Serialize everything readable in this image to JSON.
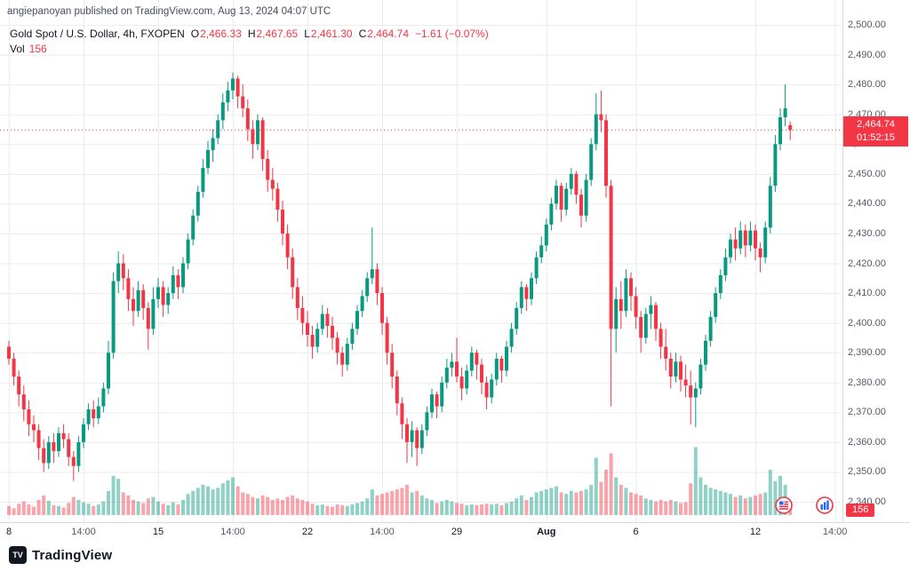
{
  "header": {
    "attribution": "angiepanoyan published on TradingView.com, Aug 13, 2024 04:07 UTC"
  },
  "legend": {
    "symbol_title": "Gold Spot / U.S. Dollar, 4h, FXOPEN",
    "o_label": "O",
    "o_value": "2,466.33",
    "h_label": "H",
    "h_value": "2,467.65",
    "l_label": "L",
    "l_value": "2,461.30",
    "c_label": "C",
    "c_value": "2,464.74",
    "change": "−1.61 (−0.07%)",
    "vol_label": "Vol",
    "vol_value": "156"
  },
  "price_axis": {
    "labels": [
      {
        "text": "2,500.00",
        "value": 2500
      },
      {
        "text": "2,490.00",
        "value": 2490
      },
      {
        "text": "2,480.00",
        "value": 2480
      },
      {
        "text": "2,470.00",
        "value": 2470
      },
      {
        "text": "2,460.00",
        "value": 2460
      },
      {
        "text": "2,450.00",
        "value": 2450
      },
      {
        "text": "2,440.00",
        "value": 2440
      },
      {
        "text": "2,430.00",
        "value": 2430
      },
      {
        "text": "2,420.00",
        "value": 2420
      },
      {
        "text": "2,410.00",
        "value": 2410
      },
      {
        "text": "2,400.00",
        "value": 2400
      },
      {
        "text": "2,390.00",
        "value": 2390
      },
      {
        "text": "2,380.00",
        "value": 2380
      },
      {
        "text": "2,370.00",
        "value": 2370
      },
      {
        "text": "2,360.00",
        "value": 2360
      },
      {
        "text": "2,350.00",
        "value": 2350
      },
      {
        "text": "2,340.00",
        "value": 2340
      }
    ],
    "current_price": "2,464.74",
    "countdown": "01:52:15",
    "volume_badge": "156"
  },
  "time_axis": {
    "labels": [
      {
        "text": "8",
        "index": 0,
        "type": "day"
      },
      {
        "text": "14:00",
        "index": 15,
        "type": "time"
      },
      {
        "text": "15",
        "index": 30,
        "type": "day"
      },
      {
        "text": "14:00",
        "index": 45,
        "type": "time"
      },
      {
        "text": "22",
        "index": 60,
        "type": "day"
      },
      {
        "text": "14:00",
        "index": 75,
        "type": "time"
      },
      {
        "text": "29",
        "index": 90,
        "type": "day"
      },
      {
        "text": "Aug",
        "index": 108,
        "type": "month"
      },
      {
        "text": "6",
        "index": 126,
        "type": "day"
      },
      {
        "text": "12",
        "index": 150,
        "type": "day"
      },
      {
        "text": "14:00",
        "index": 166,
        "type": "time"
      }
    ]
  },
  "branding": {
    "logo_mark": "TV",
    "logo_text": "TradingView"
  },
  "colors": {
    "up": "#089981",
    "down": "#f23645",
    "vol_up": "rgba(8,153,129,0.45)",
    "vol_down": "rgba(242,54,69,0.45)",
    "grid": "#e9ebf0",
    "axis_border": "#d6d9e0",
    "badge": "#f23645",
    "event_blue": "#2962ff"
  },
  "chart_data": {
    "type": "candlestick+volume",
    "title": "Gold Spot / U.S. Dollar",
    "interval": "4h",
    "exchange": "FXOPEN",
    "price_range": [
      2340,
      2500
    ],
    "current": {
      "open": 2466.33,
      "high": 2467.65,
      "low": 2461.3,
      "close": 2464.74,
      "change": -1.61,
      "change_pct": -0.07,
      "volume": 156
    },
    "candles": [
      [
        2392,
        2394,
        2386,
        2388
      ],
      [
        2388,
        2390,
        2379,
        2382
      ],
      [
        2382,
        2384,
        2372,
        2376
      ],
      [
        2376,
        2379,
        2367,
        2371
      ],
      [
        2371,
        2374,
        2362,
        2366
      ],
      [
        2366,
        2369,
        2360,
        2364
      ],
      [
        2364,
        2366,
        2354,
        2358
      ],
      [
        2358,
        2361,
        2350,
        2353
      ],
      [
        2353,
        2362,
        2351,
        2360
      ],
      [
        2360,
        2363,
        2353,
        2357
      ],
      [
        2357,
        2365,
        2355,
        2363
      ],
      [
        2363,
        2366,
        2358,
        2361
      ],
      [
        2361,
        2363,
        2352,
        2355
      ],
      [
        2355,
        2357,
        2347,
        2352
      ],
      [
        2352,
        2362,
        2350,
        2360
      ],
      [
        2360,
        2368,
        2358,
        2366
      ],
      [
        2366,
        2373,
        2364,
        2371
      ],
      [
        2371,
        2374,
        2365,
        2368
      ],
      [
        2368,
        2375,
        2366,
        2372
      ],
      [
        2372,
        2380,
        2370,
        2378
      ],
      [
        2378,
        2394,
        2376,
        2390
      ],
      [
        2390,
        2417,
        2388,
        2414
      ],
      [
        2414,
        2424,
        2410,
        2420
      ],
      [
        2420,
        2423,
        2411,
        2415
      ],
      [
        2415,
        2418,
        2404,
        2408
      ],
      [
        2408,
        2412,
        2399,
        2404
      ],
      [
        2404,
        2414,
        2402,
        2411
      ],
      [
        2411,
        2413,
        2401,
        2405
      ],
      [
        2405,
        2407,
        2391,
        2398
      ],
      [
        2398,
        2412,
        2396,
        2408
      ],
      [
        2408,
        2415,
        2405,
        2412
      ],
      [
        2412,
        2414,
        2402,
        2406
      ],
      [
        2406,
        2412,
        2403,
        2410
      ],
      [
        2410,
        2419,
        2408,
        2416
      ],
      [
        2416,
        2418,
        2408,
        2412
      ],
      [
        2412,
        2422,
        2410,
        2420
      ],
      [
        2420,
        2430,
        2418,
        2428
      ],
      [
        2428,
        2438,
        2426,
        2436
      ],
      [
        2436,
        2446,
        2434,
        2444
      ],
      [
        2444,
        2455,
        2442,
        2452
      ],
      [
        2452,
        2461,
        2450,
        2458
      ],
      [
        2458,
        2465,
        2454,
        2462
      ],
      [
        2462,
        2470,
        2460,
        2468
      ],
      [
        2468,
        2477,
        2465,
        2474
      ],
      [
        2474,
        2481,
        2471,
        2478
      ],
      [
        2478,
        2484,
        2475,
        2482
      ],
      [
        2482,
        2483,
        2472,
        2476
      ],
      [
        2476,
        2480,
        2469,
        2472
      ],
      [
        2472,
        2475,
        2461,
        2465
      ],
      [
        2465,
        2468,
        2455,
        2460
      ],
      [
        2460,
        2470,
        2458,
        2468
      ],
      [
        2468,
        2469,
        2451,
        2455
      ],
      [
        2455,
        2458,
        2444,
        2448
      ],
      [
        2448,
        2452,
        2441,
        2445
      ],
      [
        2445,
        2447,
        2434,
        2438
      ],
      [
        2438,
        2441,
        2426,
        2430
      ],
      [
        2430,
        2433,
        2418,
        2422
      ],
      [
        2422,
        2425,
        2408,
        2412
      ],
      [
        2412,
        2415,
        2401,
        2405
      ],
      [
        2405,
        2409,
        2396,
        2400
      ],
      [
        2400,
        2404,
        2392,
        2396
      ],
      [
        2396,
        2399,
        2388,
        2392
      ],
      [
        2392,
        2400,
        2390,
        2398
      ],
      [
        2398,
        2406,
        2396,
        2403
      ],
      [
        2403,
        2405,
        2395,
        2399
      ],
      [
        2399,
        2402,
        2391,
        2395
      ],
      [
        2395,
        2397,
        2386,
        2390
      ],
      [
        2390,
        2392,
        2382,
        2386
      ],
      [
        2386,
        2395,
        2384,
        2393
      ],
      [
        2393,
        2400,
        2391,
        2398
      ],
      [
        2398,
        2406,
        2396,
        2404
      ],
      [
        2404,
        2411,
        2402,
        2409
      ],
      [
        2409,
        2417,
        2407,
        2415
      ],
      [
        2415,
        2432,
        2413,
        2418
      ],
      [
        2418,
        2420,
        2406,
        2410
      ],
      [
        2410,
        2412,
        2396,
        2400
      ],
      [
        2400,
        2402,
        2386,
        2390
      ],
      [
        2390,
        2393,
        2378,
        2382
      ],
      [
        2382,
        2384,
        2369,
        2373
      ],
      [
        2373,
        2375,
        2361,
        2366
      ],
      [
        2366,
        2368,
        2353,
        2360
      ],
      [
        2360,
        2367,
        2355,
        2364
      ],
      [
        2364,
        2365,
        2352,
        2358
      ],
      [
        2358,
        2366,
        2356,
        2364
      ],
      [
        2364,
        2372,
        2362,
        2370
      ],
      [
        2370,
        2378,
        2368,
        2376
      ],
      [
        2376,
        2377,
        2368,
        2372
      ],
      [
        2372,
        2382,
        2370,
        2380
      ],
      [
        2380,
        2388,
        2378,
        2385
      ],
      [
        2385,
        2390,
        2382,
        2387
      ],
      [
        2387,
        2395,
        2380,
        2382
      ],
      [
        2382,
        2385,
        2374,
        2378
      ],
      [
        2378,
        2386,
        2376,
        2384
      ],
      [
        2384,
        2392,
        2382,
        2390
      ],
      [
        2390,
        2391,
        2381,
        2386
      ],
      [
        2386,
        2388,
        2376,
        2380
      ],
      [
        2380,
        2382,
        2371,
        2375
      ],
      [
        2375,
        2383,
        2373,
        2381
      ],
      [
        2381,
        2390,
        2379,
        2388
      ],
      [
        2388,
        2389,
        2380,
        2384
      ],
      [
        2384,
        2394,
        2382,
        2392
      ],
      [
        2392,
        2400,
        2390,
        2398
      ],
      [
        2398,
        2407,
        2396,
        2405
      ],
      [
        2405,
        2414,
        2403,
        2412
      ],
      [
        2412,
        2413,
        2404,
        2408
      ],
      [
        2408,
        2417,
        2406,
        2415
      ],
      [
        2415,
        2424,
        2413,
        2422
      ],
      [
        2422,
        2429,
        2420,
        2426
      ],
      [
        2426,
        2435,
        2424,
        2433
      ],
      [
        2433,
        2442,
        2431,
        2440
      ],
      [
        2440,
        2448,
        2438,
        2446
      ],
      [
        2446,
        2447,
        2434,
        2438
      ],
      [
        2438,
        2447,
        2436,
        2445
      ],
      [
        2445,
        2452,
        2443,
        2450
      ],
      [
        2450,
        2451,
        2440,
        2443
      ],
      [
        2443,
        2445,
        2432,
        2436
      ],
      [
        2436,
        2450,
        2434,
        2448
      ],
      [
        2448,
        2462,
        2446,
        2460
      ],
      [
        2460,
        2477,
        2458,
        2470
      ],
      [
        2470,
        2478,
        2464,
        2468
      ],
      [
        2468,
        2470,
        2442,
        2446
      ],
      [
        2446,
        2448,
        2372,
        2398
      ],
      [
        2398,
        2412,
        2390,
        2408
      ],
      [
        2408,
        2414,
        2398,
        2404
      ],
      [
        2404,
        2418,
        2402,
        2415
      ],
      [
        2415,
        2417,
        2404,
        2409
      ],
      [
        2409,
        2412,
        2398,
        2402
      ],
      [
        2402,
        2404,
        2390,
        2395
      ],
      [
        2395,
        2405,
        2393,
        2403
      ],
      [
        2403,
        2409,
        2398,
        2406
      ],
      [
        2406,
        2407,
        2394,
        2398
      ],
      [
        2398,
        2400,
        2388,
        2392
      ],
      [
        2392,
        2398,
        2384,
        2388
      ],
      [
        2388,
        2390,
        2378,
        2382
      ],
      [
        2382,
        2390,
        2380,
        2387
      ],
      [
        2387,
        2389,
        2377,
        2381
      ],
      [
        2381,
        2386,
        2375,
        2379
      ],
      [
        2379,
        2384,
        2366,
        2375
      ],
      [
        2375,
        2380,
        2365,
        2378
      ],
      [
        2378,
        2388,
        2376,
        2386
      ],
      [
        2386,
        2396,
        2384,
        2394
      ],
      [
        2394,
        2404,
        2392,
        2402
      ],
      [
        2402,
        2412,
        2400,
        2410
      ],
      [
        2410,
        2418,
        2408,
        2416
      ],
      [
        2416,
        2425,
        2414,
        2422
      ],
      [
        2422,
        2430,
        2420,
        2428
      ],
      [
        2428,
        2432,
        2421,
        2425
      ],
      [
        2425,
        2434,
        2423,
        2431
      ],
      [
        2431,
        2433,
        2422,
        2426
      ],
      [
        2426,
        2434,
        2424,
        2431
      ],
      [
        2431,
        2433,
        2421,
        2425
      ],
      [
        2425,
        2427,
        2417,
        2422
      ],
      [
        2422,
        2434,
        2420,
        2432
      ],
      [
        2432,
        2449,
        2430,
        2446
      ],
      [
        2446,
        2463,
        2444,
        2460
      ],
      [
        2460,
        2472,
        2458,
        2469
      ],
      [
        2469,
        2480,
        2466,
        2472
      ],
      [
        2466.33,
        2467.65,
        2461.3,
        2464.74
      ]
    ],
    "volumes": [
      120,
      90,
      150,
      180,
      140,
      110,
      200,
      260,
      190,
      130,
      120,
      100,
      160,
      240,
      200,
      170,
      150,
      120,
      140,
      180,
      320,
      520,
      480,
      300,
      260,
      200,
      180,
      160,
      220,
      240,
      180,
      150,
      130,
      170,
      140,
      200,
      280,
      320,
      360,
      400,
      380,
      340,
      360,
      420,
      460,
      500,
      380,
      300,
      280,
      240,
      220,
      260,
      240,
      200,
      220,
      200,
      240,
      260,
      220,
      200,
      180,
      150,
      130,
      140,
      120,
      110,
      140,
      130,
      120,
      140,
      160,
      180,
      220,
      340,
      260,
      280,
      300,
      320,
      340,
      360,
      400,
      300,
      320,
      260,
      220,
      200,
      160,
      180,
      200,
      180,
      160,
      150,
      130,
      140,
      130,
      140,
      150,
      140,
      150,
      130,
      160,
      180,
      220,
      260,
      200,
      240,
      300,
      320,
      340,
      360,
      380,
      300,
      280,
      320,
      300,
      320,
      340,
      400,
      760,
      440,
      600,
      820,
      500,
      400,
      360,
      300,
      280,
      260,
      220,
      200,
      180,
      200,
      180,
      200,
      180,
      160,
      170,
      420,
      900,
      500,
      400,
      360,
      340,
      320,
      300,
      280,
      240,
      260,
      220,
      240,
      260,
      280,
      300,
      600,
      450,
      520,
      400,
      156
    ]
  }
}
